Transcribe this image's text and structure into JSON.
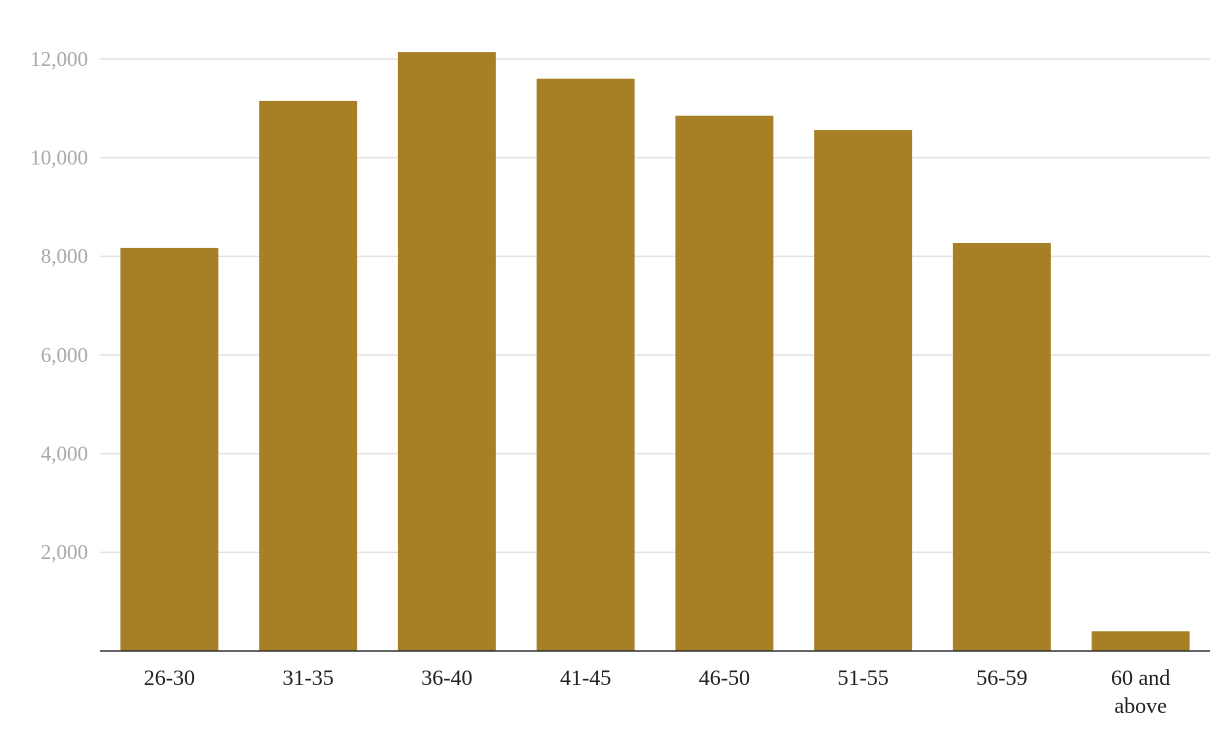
{
  "chart_data": {
    "type": "bar",
    "categories": [
      "26-30",
      "31-35",
      "36-40",
      "41-45",
      "46-50",
      "51-55",
      "56-59",
      "60 and above"
    ],
    "values": [
      8170,
      11150,
      12140,
      11600,
      10850,
      10560,
      8270,
      400
    ],
    "color": "#a67f26",
    "ylim": [
      0,
      12500
    ],
    "yticks": [
      {
        "value": 2000,
        "label": "2,000"
      },
      {
        "value": 4000,
        "label": "4,000"
      },
      {
        "value": 6000,
        "label": "6,000"
      },
      {
        "value": 8000,
        "label": "8,000"
      },
      {
        "value": 10000,
        "label": "10,000"
      },
      {
        "value": 12000,
        "label": "12,000"
      }
    ],
    "grid": true
  }
}
